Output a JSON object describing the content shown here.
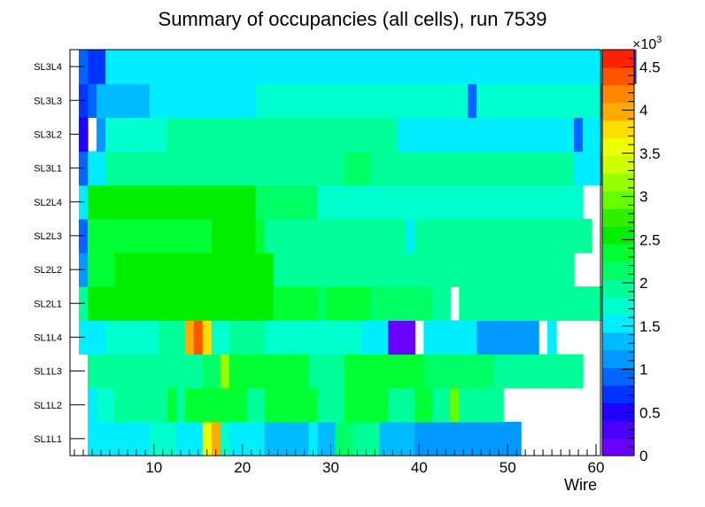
{
  "chart_data": {
    "type": "heatmap",
    "title": "Summary of occupancies (all cells),      run 7539",
    "xlabel": "Wire",
    "ylabel": "",
    "xlim": [
      0.5,
      60.5
    ],
    "x_ticks": [
      "10",
      "20",
      "30",
      "40",
      "50",
      "60"
    ],
    "x_tick_values": [
      10,
      20,
      30,
      40,
      50,
      60
    ],
    "y_categories": [
      "SL1L1",
      "SL1L2",
      "SL1L3",
      "SL1L4",
      "SL2L1",
      "SL2L2",
      "SL2L3",
      "SL2L4",
      "SL3L1",
      "SL3L2",
      "SL3L3",
      "SL3L4"
    ],
    "colorbar": {
      "min": 0,
      "max": 4700,
      "exponent_label": "×10",
      "exponent_power": "3",
      "tick_labels": [
        "0",
        "0.5",
        "1",
        "1.5",
        "2",
        "2.5",
        "3",
        "3.5",
        "4",
        "4.5"
      ],
      "tick_values": [
        0,
        500,
        1000,
        1500,
        2000,
        2500,
        3000,
        3500,
        4000,
        4500
      ]
    },
    "palette": [
      "#6a00ff",
      "#4b00ff",
      "#2200ff",
      "#0033ff",
      "#0066ff",
      "#0099ff",
      "#00bbff",
      "#00eeff",
      "#00ffcc",
      "#00ff99",
      "#00ff66",
      "#00ff33",
      "#00ee00",
      "#33ee00",
      "#66ff00",
      "#99ff00",
      "#ccff00",
      "#eeff00",
      "#ffdd00",
      "#ffaa00",
      "#ff8800",
      "#ff5500",
      "#ff2200"
    ],
    "runs": [
      [
        [
          "w",
          2
        ],
        [
          1.6,
          7
        ],
        [
          1.7,
          3
        ],
        [
          1.6,
          3
        ],
        [
          3.6,
          1
        ],
        [
          3.9,
          1
        ],
        [
          1.7,
          1
        ],
        [
          1.6,
          3
        ],
        [
          1.5,
          1
        ],
        [
          1.4,
          5
        ],
        [
          1.6,
          1
        ],
        [
          1.4,
          2
        ],
        [
          2.2,
          2
        ],
        [
          2.0,
          3
        ],
        [
          1.3,
          4
        ],
        [
          1.1,
          12
        ],
        [
          "w",
          4
        ]
      ],
      [
        [
          "w",
          2
        ],
        [
          1.5,
          1
        ],
        [
          1.8,
          2
        ],
        [
          2.0,
          6
        ],
        [
          2.3,
          1
        ],
        [
          1.9,
          1
        ],
        [
          2.3,
          7
        ],
        [
          1.9,
          2
        ],
        [
          2.3,
          6
        ],
        [
          2.0,
          3
        ],
        [
          2.3,
          5
        ],
        [
          2.0,
          3
        ],
        [
          2.3,
          2
        ],
        [
          2.0,
          2
        ],
        [
          2.9,
          1
        ],
        [
          2.0,
          5
        ],
        [
          "w",
          4
        ]
      ],
      [
        [
          "w",
          2
        ],
        [
          2.0,
          13
        ],
        [
          2.2,
          2
        ],
        [
          3.2,
          1
        ],
        [
          2.4,
          9
        ],
        [
          2.0,
          4
        ],
        [
          2.4,
          9
        ],
        [
          2.2,
          8
        ],
        [
          2.0,
          9
        ],
        [
          1.9,
          1
        ],
        [
          "w",
          2
        ]
      ],
      [
        [
          "w",
          1
        ],
        [
          1.5,
          3
        ],
        [
          1.8,
          6
        ],
        [
          2.0,
          3
        ],
        [
          3.9,
          1
        ],
        [
          4.3,
          1
        ],
        [
          3.8,
          1
        ],
        [
          1.8,
          2
        ],
        [
          2.0,
          4
        ],
        [
          1.7,
          11
        ],
        [
          1.5,
          3
        ],
        [
          0.1,
          3
        ],
        [
          "w",
          1
        ],
        [
          1.5,
          6
        ],
        [
          1.2,
          7
        ],
        [
          "w",
          1
        ],
        [
          1.6,
          1
        ],
        [
          "w",
          2
        ]
      ],
      [
        [
          "w",
          1
        ],
        [
          2.0,
          1
        ],
        [
          2.5,
          12
        ],
        [
          2.6,
          3
        ],
        [
          2.5,
          6
        ],
        [
          2.3,
          5
        ],
        [
          2.1,
          1
        ],
        [
          2.3,
          5
        ],
        [
          2.1,
          7
        ],
        [
          2.0,
          2
        ],
        [
          "w",
          1
        ],
        [
          2.0,
          5
        ],
        [
          1.9,
          12
        ],
        [
          "w",
          3
        ]
      ],
      [
        [
          "w",
          1
        ],
        [
          1.1,
          1
        ],
        [
          2.4,
          3
        ],
        [
          2.6,
          7
        ],
        [
          2.5,
          9
        ],
        [
          2.6,
          2
        ],
        [
          2.0,
          19
        ],
        [
          1.9,
          15
        ],
        [
          "w",
          3
        ]
      ],
      [
        [
          "w",
          1
        ],
        [
          1.0,
          1
        ],
        [
          2.4,
          14
        ],
        [
          2.6,
          5
        ],
        [
          2.4,
          1
        ],
        [
          1.9,
          16
        ],
        [
          1.6,
          1
        ],
        [
          1.9,
          20
        ],
        [
          "w",
          2
        ]
      ],
      [
        [
          "w",
          1
        ],
        [
          1.6,
          1
        ],
        [
          2.5,
          6
        ],
        [
          2.6,
          13
        ],
        [
          2.2,
          7
        ],
        [
          1.8,
          21
        ],
        [
          1.7,
          9
        ],
        [
          "w",
          2
        ]
      ],
      [
        [
          "w",
          1
        ],
        [
          1.0,
          1
        ],
        [
          1.6,
          2
        ],
        [
          1.9,
          6
        ],
        [
          1.9,
          21
        ],
        [
          2.1,
          3
        ],
        [
          1.9,
          23
        ],
        [
          1.5,
          3
        ],
        [
          1.2,
          1
        ]
      ],
      [
        [
          "w",
          1
        ],
        [
          0.6,
          1
        ],
        [
          "w",
          1
        ],
        [
          1.1,
          1
        ],
        [
          1.7,
          7
        ],
        [
          1.9,
          26
        ],
        [
          1.6,
          20
        ],
        [
          0.9,
          1
        ],
        [
          1.5,
          3
        ]
      ],
      [
        [
          "w",
          1
        ],
        [
          0.8,
          1
        ],
        [
          1.0,
          1
        ],
        [
          1.4,
          6
        ],
        [
          1.6,
          12
        ],
        [
          1.8,
          24
        ],
        [
          0.9,
          1
        ],
        [
          1.7,
          14
        ],
        [
          1.2,
          1
        ]
      ],
      [
        [
          "w",
          1
        ],
        [
          1.0,
          1
        ],
        [
          0.8,
          2
        ],
        [
          1.6,
          58
        ],
        [
          1.0,
          1
        ],
        [
          0.7,
          1
        ]
      ]
    ]
  }
}
